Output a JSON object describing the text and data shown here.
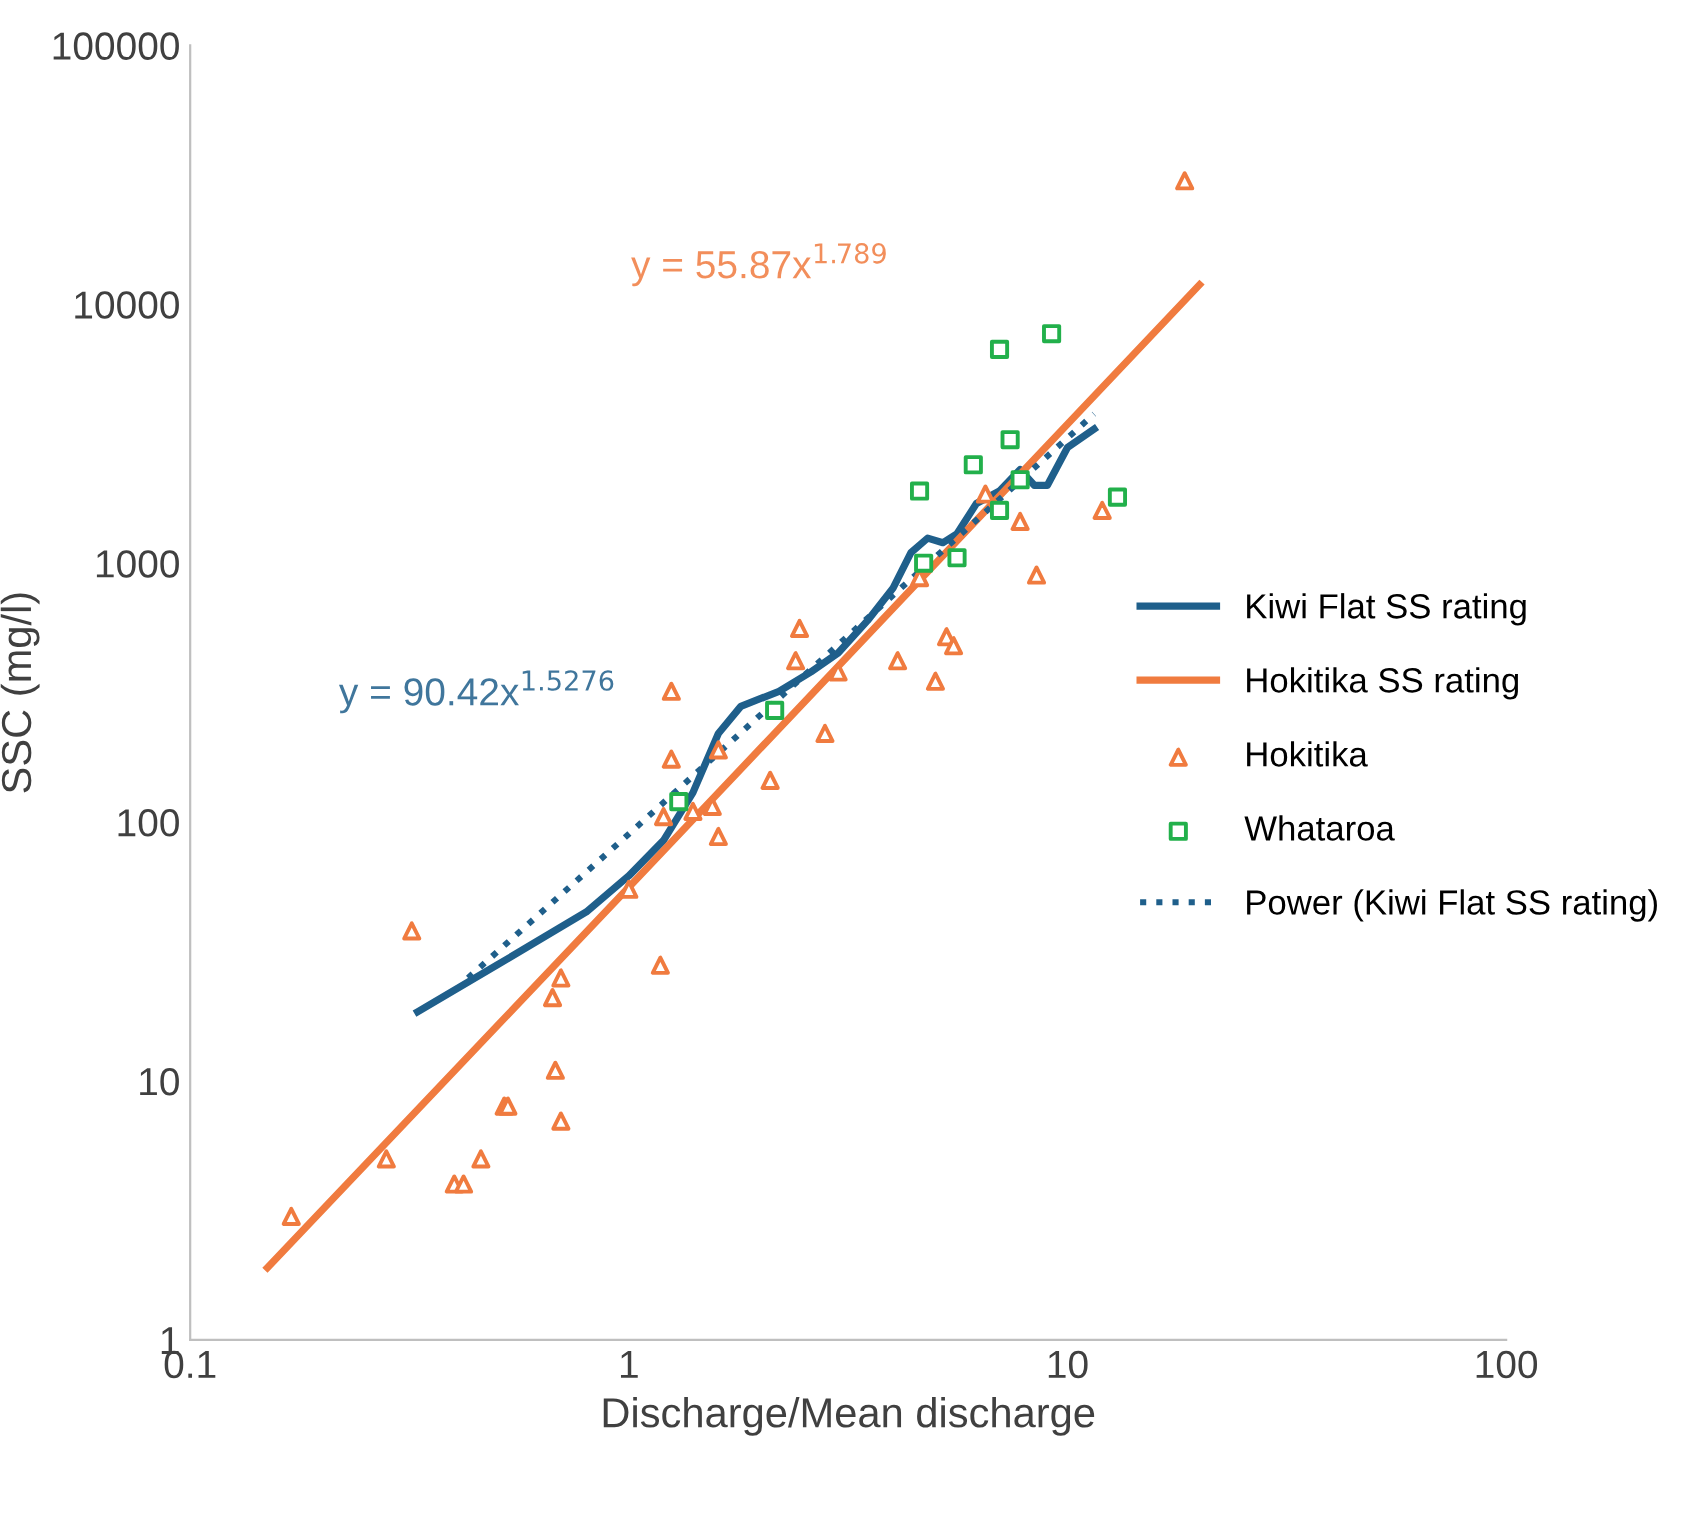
{
  "chart_data": {
    "type": "scatter",
    "xlabel": "Discharge/Mean discharge",
    "ylabel": "SSC (mg/l)",
    "log": "xy",
    "xlim": [
      0.1,
      100
    ],
    "ylim": [
      1,
      100000
    ],
    "xticks": [
      {
        "value": 0.1,
        "label": "0.1"
      },
      1,
      10,
      100
    ],
    "yticks": [
      1,
      10,
      100,
      1000,
      10000,
      100000
    ],
    "grid": false,
    "legend": "right",
    "series": [
      {
        "name": "Kiwi Flat SS rating",
        "type": "line",
        "color": "#1f5f8b",
        "line_style": "solid",
        "marker": "none",
        "x": [
          0.33,
          0.5,
          0.8,
          1.0,
          1.2,
          1.4,
          1.6,
          1.8,
          2.2,
          2.6,
          3.0,
          3.5,
          4.0,
          4.4,
          4.8,
          5.2,
          5.6,
          6.2,
          7.0,
          7.8,
          8.4,
          9.0,
          10,
          11.5
        ],
        "values": [
          18.5,
          28,
          45,
          62,
          85,
          130,
          220,
          280,
          320,
          380,
          450,
          600,
          800,
          1100,
          1250,
          1200,
          1300,
          1700,
          1900,
          2300,
          2000,
          2000,
          2800,
          3300
        ]
      },
      {
        "name": "Hokitika SS rating",
        "type": "line",
        "color": "#f07b3f",
        "line_style": "solid",
        "marker": "none",
        "x": [
          0.15,
          1,
          20
        ],
        "values": [
          1.9,
          56,
          11900
        ]
      },
      {
        "name": "Hokitika",
        "color": "#f07b3f",
        "marker": "triangle",
        "x": [
          0.17,
          0.28,
          0.32,
          0.4,
          0.42,
          0.46,
          0.52,
          0.53,
          0.67,
          0.68,
          0.7,
          0.7,
          1.0,
          1.18,
          1.2,
          1.25,
          1.25,
          1.4,
          1.55,
          1.6,
          1.6,
          2.1,
          2.4,
          2.45,
          2.8,
          3.0,
          4.1,
          4.6,
          5.0,
          5.3,
          5.5,
          6.5,
          7.8,
          8.5,
          12,
          18.5
        ],
        "values": [
          3,
          5,
          38,
          4,
          4,
          5,
          8,
          8,
          21,
          11,
          25,
          7,
          55,
          28,
          105,
          175,
          320,
          110,
          115,
          190,
          88,
          145,
          420,
          560,
          220,
          380,
          420,
          880,
          350,
          520,
          480,
          1850,
          1450,
          900,
          1600,
          30000
        ]
      },
      {
        "name": "Whataroa",
        "color": "#22b04b",
        "marker": "square",
        "x": [
          1.3,
          2.15,
          4.6,
          4.7,
          5.6,
          6.1,
          7.0,
          7.0,
          7.4,
          7.8,
          9.2,
          13
        ],
        "values": [
          120,
          270,
          1900,
          1000,
          1050,
          2400,
          1600,
          6700,
          3000,
          2100,
          7700,
          1800
        ]
      },
      {
        "name": "Power (Kiwi Flat SS rating)",
        "type": "line",
        "color": "#1f5f8b",
        "line_style": "dotted",
        "marker": "none",
        "x": [
          0.43,
          1,
          3,
          11.5
        ],
        "values": [
          25,
          90,
          484,
          3770
        ]
      }
    ],
    "annotations": [
      "y = 90.42x$^{1.5276}$",
      "y = 55.87x$^{1.789}$"
    ]
  }
}
